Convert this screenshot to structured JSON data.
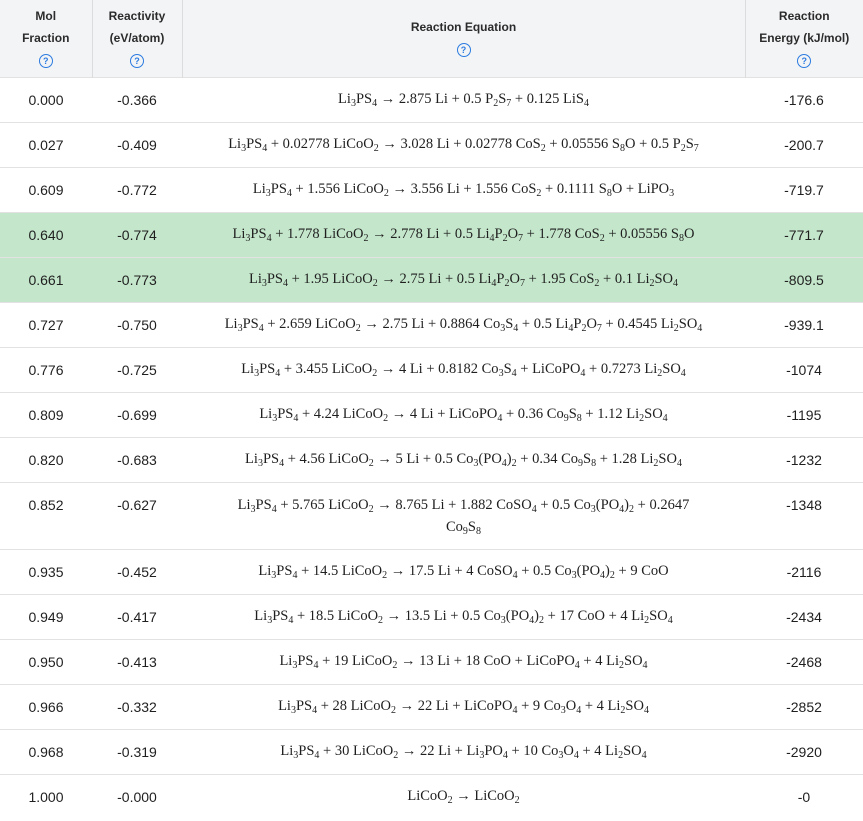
{
  "header": {
    "mol_fraction": [
      "Mol",
      "Fraction"
    ],
    "reactivity": [
      "Reactivity",
      "(eV/atom)"
    ],
    "equation": [
      "Reaction Equation"
    ],
    "energy": [
      "Reaction",
      "Energy (kJ/mol)"
    ],
    "help_glyph": "?"
  },
  "colors": {
    "highlight": "#c4e6cb",
    "header_bg": "#f3f4f6",
    "help_icon": "#2b7be0"
  },
  "rows": [
    {
      "mol": "0.000",
      "react": "-0.366",
      "eq": "Li<sub>3</sub>PS<sub>4</sub> → 2.875 Li + 0.5 P<sub>2</sub>S<sub>7</sub> + 0.125 LiS<sub>4</sub>",
      "energy": "-176.6",
      "highlighted": false
    },
    {
      "mol": "0.027",
      "react": "-0.409",
      "eq": "Li<sub>3</sub>PS<sub>4</sub> + 0.02778 LiCoO<sub>2</sub> → 3.028 Li + 0.02778 CoS<sub>2</sub> + 0.05556 S<sub>8</sub>O + 0.5 P<sub>2</sub>S<sub>7</sub>",
      "energy": "-200.7",
      "highlighted": false
    },
    {
      "mol": "0.609",
      "react": "-0.772",
      "eq": "Li<sub>3</sub>PS<sub>4</sub> + 1.556 LiCoO<sub>2</sub> → 3.556 Li + 1.556 CoS<sub>2</sub> + 0.1111 S<sub>8</sub>O + LiPO<sub>3</sub>",
      "energy": "-719.7",
      "highlighted": false
    },
    {
      "mol": "0.640",
      "react": "-0.774",
      "eq": "Li<sub>3</sub>PS<sub>4</sub> + 1.778 LiCoO<sub>2</sub> → 2.778 Li + 0.5 Li<sub>4</sub>P<sub>2</sub>O<sub>7</sub> + 1.778 CoS<sub>2</sub> + 0.05556 S<sub>8</sub>O",
      "energy": "-771.7",
      "highlighted": true
    },
    {
      "mol": "0.661",
      "react": "-0.773",
      "eq": "Li<sub>3</sub>PS<sub>4</sub> + 1.95 LiCoO<sub>2</sub> → 2.75 Li + 0.5 Li<sub>4</sub>P<sub>2</sub>O<sub>7</sub> + 1.95 CoS<sub>2</sub> + 0.1 Li<sub>2</sub>SO<sub>4</sub>",
      "energy": "-809.5",
      "highlighted": true
    },
    {
      "mol": "0.727",
      "react": "-0.750",
      "eq": "Li<sub>3</sub>PS<sub>4</sub> + 2.659 LiCoO<sub>2</sub> → 2.75 Li + 0.8864 Co<sub>3</sub>S<sub>4</sub> + 0.5 Li<sub>4</sub>P<sub>2</sub>O<sub>7</sub> + 0.4545 Li<sub>2</sub>SO<sub>4</sub>",
      "energy": "-939.1",
      "highlighted": false
    },
    {
      "mol": "0.776",
      "react": "-0.725",
      "eq": "Li<sub>3</sub>PS<sub>4</sub> + 3.455 LiCoO<sub>2</sub> → 4 Li + 0.8182 Co<sub>3</sub>S<sub>4</sub> + LiCoPO<sub>4</sub> + 0.7273 Li<sub>2</sub>SO<sub>4</sub>",
      "energy": "-1074",
      "highlighted": false
    },
    {
      "mol": "0.809",
      "react": "-0.699",
      "eq": "Li<sub>3</sub>PS<sub>4</sub> + 4.24 LiCoO<sub>2</sub> → 4 Li + LiCoPO<sub>4</sub> + 0.36 Co<sub>9</sub>S<sub>8</sub> + 1.12 Li<sub>2</sub>SO<sub>4</sub>",
      "energy": "-1195",
      "highlighted": false
    },
    {
      "mol": "0.820",
      "react": "-0.683",
      "eq": "Li<sub>3</sub>PS<sub>4</sub> + 4.56 LiCoO<sub>2</sub> → 5 Li + 0.5 Co<sub>3</sub>(PO<sub>4</sub>)<sub>2</sub> + 0.34 Co<sub>9</sub>S<sub>8</sub> + 1.28 Li<sub>2</sub>SO<sub>4</sub>",
      "energy": "-1232",
      "highlighted": false
    },
    {
      "mol": "0.852",
      "react": "-0.627",
      "eq": "Li<sub>3</sub>PS<sub>4</sub> + 5.765 LiCoO<sub>2</sub> → 8.765 Li + 1.882 CoSO<sub>4</sub> + 0.5 Co<sub>3</sub>(PO<sub>4</sub>)<sub>2</sub> + 0.2647<br>Co<sub>9</sub>S<sub>8</sub>",
      "energy": "-1348",
      "highlighted": false,
      "tall": true
    },
    {
      "mol": "0.935",
      "react": "-0.452",
      "eq": "Li<sub>3</sub>PS<sub>4</sub> + 14.5 LiCoO<sub>2</sub> → 17.5 Li + 4 CoSO<sub>4</sub> + 0.5 Co<sub>3</sub>(PO<sub>4</sub>)<sub>2</sub> + 9 CoO",
      "energy": "-2116",
      "highlighted": false
    },
    {
      "mol": "0.949",
      "react": "-0.417",
      "eq": "Li<sub>3</sub>PS<sub>4</sub> + 18.5 LiCoO<sub>2</sub> → 13.5 Li + 0.5 Co<sub>3</sub>(PO<sub>4</sub>)<sub>2</sub> + 17 CoO + 4 Li<sub>2</sub>SO<sub>4</sub>",
      "energy": "-2434",
      "highlighted": false
    },
    {
      "mol": "0.950",
      "react": "-0.413",
      "eq": "Li<sub>3</sub>PS<sub>4</sub> + 19 LiCoO<sub>2</sub> → 13 Li + 18 CoO + LiCoPO<sub>4</sub> + 4 Li<sub>2</sub>SO<sub>4</sub>",
      "energy": "-2468",
      "highlighted": false
    },
    {
      "mol": "0.966",
      "react": "-0.332",
      "eq": "Li<sub>3</sub>PS<sub>4</sub> + 28 LiCoO<sub>2</sub> → 22 Li + LiCoPO<sub>4</sub> + 9 Co<sub>3</sub>O<sub>4</sub> + 4 Li<sub>2</sub>SO<sub>4</sub>",
      "energy": "-2852",
      "highlighted": false
    },
    {
      "mol": "0.968",
      "react": "-0.319",
      "eq": "Li<sub>3</sub>PS<sub>4</sub> + 30 LiCoO<sub>2</sub> → 22 Li + Li<sub>3</sub>PO<sub>4</sub> + 10 Co<sub>3</sub>O<sub>4</sub> + 4 Li<sub>2</sub>SO<sub>4</sub>",
      "energy": "-2920",
      "highlighted": false
    },
    {
      "mol": "1.000",
      "react": "-0.000",
      "eq": "LiCoO<sub>2</sub> → LiCoO<sub>2</sub>",
      "energy": "-0",
      "highlighted": false
    }
  ]
}
